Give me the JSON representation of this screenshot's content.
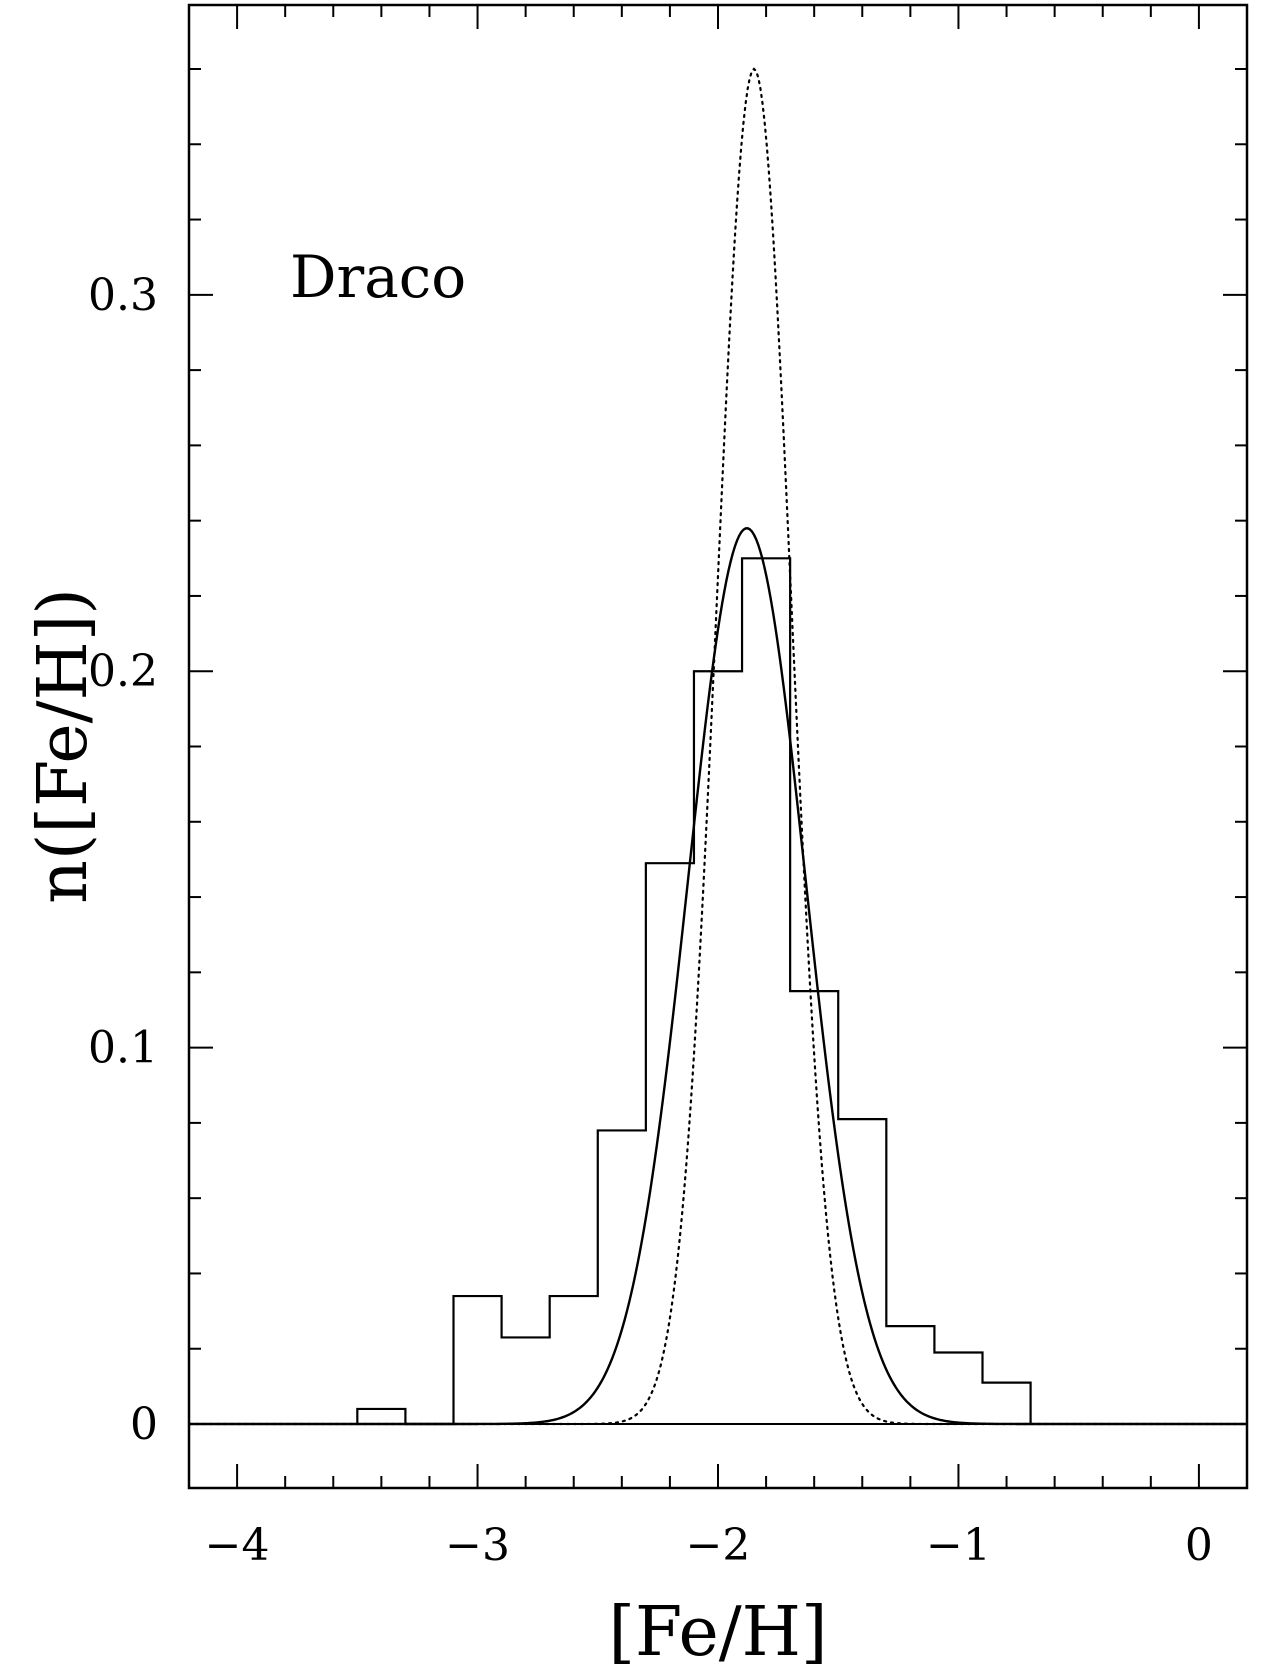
{
  "chart_data": {
    "type": "line",
    "annotation": "Draco",
    "xlabel": "[Fe/H]",
    "ylabel": "n([Fe/H])",
    "xlim": [
      -4.2,
      0.2
    ],
    "ylim": [
      -0.017,
      0.377
    ],
    "grid": false,
    "x_major_ticks": [
      -4,
      -3,
      -2,
      -1,
      0
    ],
    "x_tick_labels": [
      "−4",
      "−3",
      "−2",
      "−1",
      "0"
    ],
    "x_minor_ticks": [
      -3.8,
      -3.6,
      -3.4,
      -3.2,
      -2.8,
      -2.6,
      -2.4,
      -2.2,
      -1.8,
      -1.6,
      -1.4,
      -1.2,
      -0.8,
      -0.6,
      -0.4,
      -0.2
    ],
    "y_major_ticks": [
      0,
      0.1,
      0.2,
      0.3
    ],
    "y_tick_labels": [
      "0",
      "0.1",
      "0.2",
      "0.3"
    ],
    "y_minor_ticks": [
      0.02,
      0.04,
      0.06,
      0.08,
      0.12,
      0.14,
      0.16,
      0.18,
      0.22,
      0.24,
      0.26,
      0.28,
      0.32,
      0.34,
      0.36
    ],
    "histogram": {
      "bin_edges": [
        -3.5,
        -3.3,
        -3.1,
        -2.9,
        -2.7,
        -2.5,
        -2.3,
        -2.1,
        -1.9,
        -1.7,
        -1.5,
        -1.3,
        -1.1,
        -0.9,
        -0.7
      ],
      "values": [
        0.004,
        0.0,
        0.034,
        0.023,
        0.034,
        0.078,
        0.149,
        0.2,
        0.23,
        0.115,
        0.081,
        0.026,
        0.019,
        0.011
      ]
    },
    "series": [
      {
        "style": "solid",
        "model": "gaussian",
        "mean": -1.88,
        "sigma": 0.245,
        "peak": 0.238
      },
      {
        "style": "dotted",
        "model": "gaussian",
        "mean": -1.85,
        "sigma": 0.155,
        "peak": 0.36
      }
    ]
  }
}
